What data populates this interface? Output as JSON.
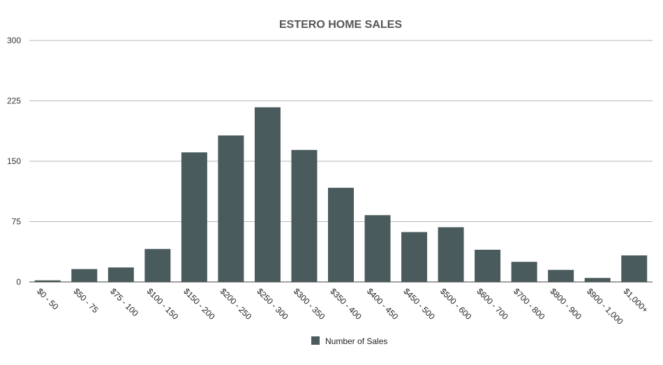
{
  "chart_data": {
    "type": "bar",
    "title": "ESTERO HOME SALES",
    "xlabel": "",
    "ylabel": "",
    "ylim": [
      0,
      300
    ],
    "yticks": [
      "0",
      "75",
      "150",
      "225",
      "300"
    ],
    "grid": true,
    "legend_position": "bottom",
    "categories": [
      "$0 - 50",
      "$50 - 75",
      "$75 - 100",
      "$100 - 150",
      "$150 - 200",
      "$200 - 250",
      "$250 - 300",
      "$300 - 350",
      "$350 - 400",
      "$400 - 450",
      "$450 - 500",
      "$500 - 600",
      "$600 - 700",
      "$700 - 800",
      "$800 - 900",
      "$900 - 1,000",
      "$1,000+"
    ],
    "series": [
      {
        "name": "Number of Sales",
        "color": "#4a5b5d",
        "values": [
          2,
          16,
          18,
          41,
          161,
          182,
          217,
          164,
          117,
          83,
          62,
          68,
          40,
          25,
          15,
          5,
          33
        ]
      }
    ]
  }
}
